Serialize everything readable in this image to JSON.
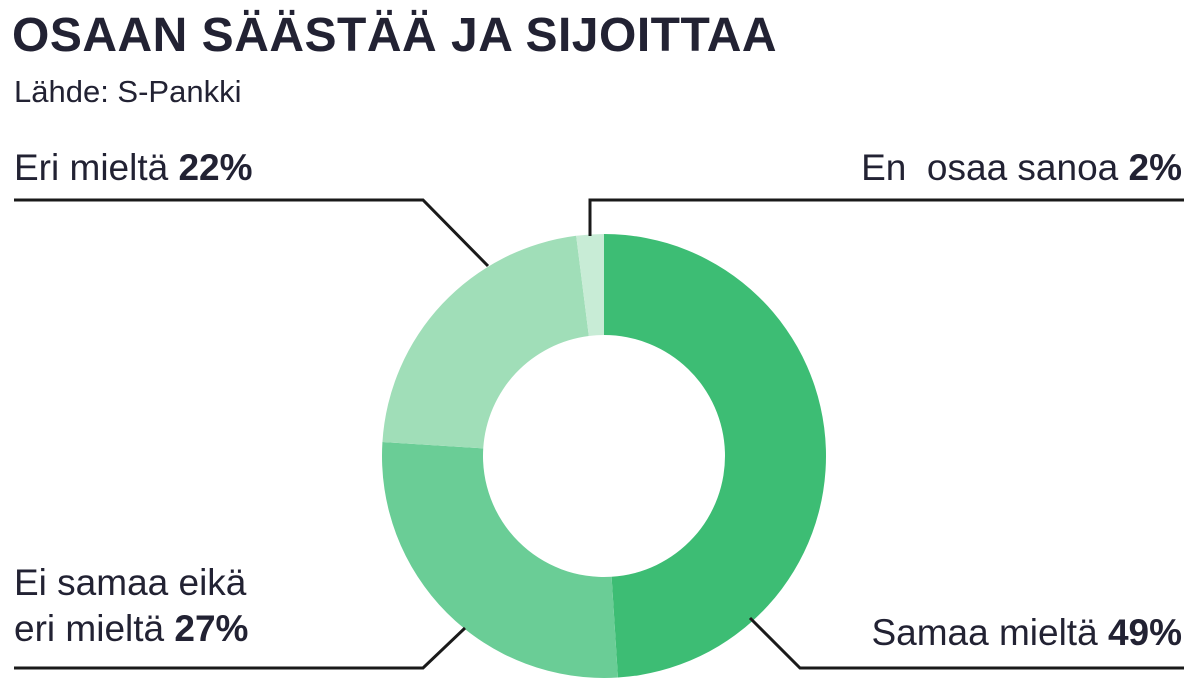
{
  "header": {
    "title": "OSAAN SÄÄSTÄÄ JA SIJOITTAA",
    "source": "Lähde: S-Pankki"
  },
  "chart_data": {
    "type": "pie",
    "title": "OSAAN SÄÄSTÄÄ JA SIJOITTAA",
    "subtitle": "Lähde: S-Pankki",
    "donut": true,
    "slices": [
      {
        "label": "Samaa mieltä",
        "value": 49,
        "value_label": "49%",
        "color": "#3dbd74"
      },
      {
        "label": "Ei samaa eikä eri mieltä",
        "label_line1": "Ei samaa eikä",
        "label_line2": "eri mieltä",
        "value": 27,
        "value_label": "27%",
        "color": "#6acd96"
      },
      {
        "label": "Eri mieltä",
        "value": 22,
        "value_label": "22%",
        "color": "#a0deb8"
      },
      {
        "label": "En  osaa sanoa",
        "value": 2,
        "value_label": "2%",
        "color": "#c8ecd6"
      }
    ]
  }
}
